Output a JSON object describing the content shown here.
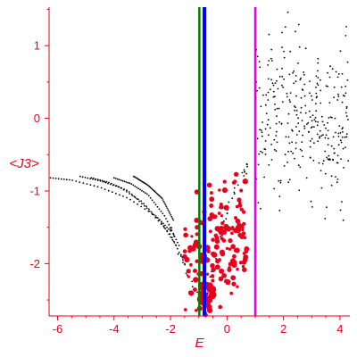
{
  "chart_data": {
    "type": "scatter",
    "title": "",
    "xlabel": "E",
    "ylabel": "<J3>",
    "xlim": [
      -6.3,
      4.35
    ],
    "ylim": [
      -2.72,
      1.53
    ],
    "x_ticks": [
      -6,
      -4,
      -2,
      0,
      2,
      4
    ],
    "y_ticks": [
      -2,
      -1,
      0,
      1
    ],
    "grid": false,
    "axis_color": "#e8001c",
    "vertical_lines": [
      {
        "x": -0.98,
        "color": "#008000"
      },
      {
        "x": -0.8,
        "color": "#0000ff"
      },
      {
        "x": 1.0,
        "color": "#e000e0"
      }
    ],
    "series": [
      {
        "color": "#000000",
        "marker": "small-dot",
        "description_points": "dense black point cloud, right region",
        "cluster": {
          "x_range": [
            1.0,
            4.3
          ],
          "y_mean": 0.0,
          "y_spread": 0.55,
          "count": 320
        }
      },
      {
        "color": "#000000",
        "marker": "small-dot",
        "curves": [
          {
            "x": [
              -6.25,
              -5.5,
              -4.5,
              -3.5,
              -2.5,
              -2.0
            ],
            "y": [
              -0.82,
              -0.85,
              -0.95,
              -1.1,
              -1.35,
              -1.55
            ]
          },
          {
            "x": [
              -5.2,
              -4.5,
              -3.8,
              -3.0,
              -2.3,
              -1.8
            ],
            "y": [
              -0.8,
              -0.86,
              -0.95,
              -1.15,
              -1.45,
              -1.75
            ]
          },
          {
            "x": [
              -4.8,
              -4.2,
              -3.5,
              -2.8,
              -2.0,
              -1.5
            ],
            "y": [
              -0.82,
              -0.88,
              -1.0,
              -1.25,
              -1.6,
              -2.0
            ]
          },
          {
            "x": [
              -4.0,
              -3.4,
              -2.8,
              -2.2,
              -1.7
            ],
            "y": [
              -0.82,
              -0.9,
              -1.05,
              -1.35,
              -1.75
            ]
          },
          {
            "x": [
              -3.3,
              -2.8,
              -2.3,
              -1.9
            ],
            "y": [
              -0.8,
              -0.92,
              -1.1,
              -1.4
            ]
          }
        ],
        "lower_envelope": {
          "x": [
            -2.1,
            -1.4,
            -0.8,
            -0.3,
            0.2,
            0.8
          ],
          "y": [
            -1.5,
            -2.2,
            -2.65,
            -1.8,
            -1.1,
            -0.7
          ],
          "count": 60
        }
      },
      {
        "color": "#e8001c",
        "marker": "filled-circle",
        "cluster": {
          "x_range": [
            -1.5,
            0.7
          ],
          "y_mean": -1.8,
          "y_spread": 0.45,
          "count": 170
        },
        "cluster_bottom": {
          "x_range": [
            -1.0,
            -0.5
          ],
          "y_range": [
            -2.6,
            -2.3
          ],
          "count": 25
        }
      }
    ]
  }
}
